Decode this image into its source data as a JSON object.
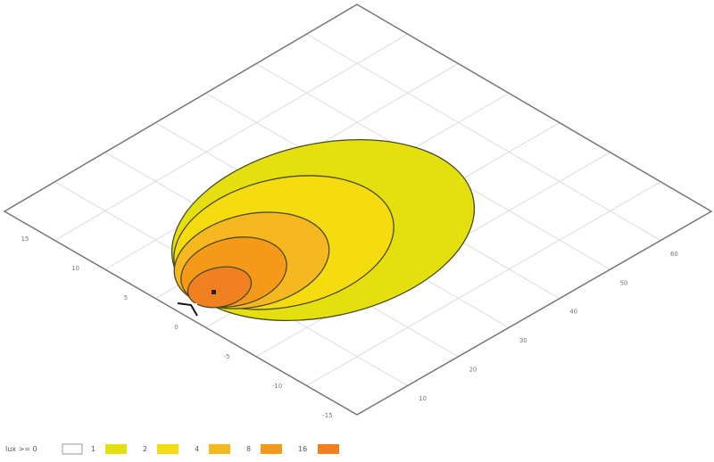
{
  "chart_data": {
    "type": "contour",
    "projection": "isometric",
    "xlabel": "",
    "ylabel": "",
    "x_ticks": [
      "10",
      "20",
      "30",
      "40",
      "50",
      "60"
    ],
    "y_ticks": [
      "15",
      "10",
      "5",
      "0",
      "-5",
      "-10",
      "-15"
    ],
    "grid": true,
    "legend": {
      "placement": "bottom-left",
      "title": "lux >= 0",
      "levels": [
        {
          "label": "1",
          "color": "#e4e010"
        },
        {
          "label": "2",
          "color": "#f5dc10"
        },
        {
          "label": "4",
          "color": "#f5b820"
        },
        {
          "label": "8",
          "color": "#f59a18"
        },
        {
          "label": "16",
          "color": "#f08020"
        }
      ]
    },
    "contour_levels": [
      1,
      2,
      4,
      8,
      16
    ],
    "contour_line_color": "#4a4a20"
  }
}
